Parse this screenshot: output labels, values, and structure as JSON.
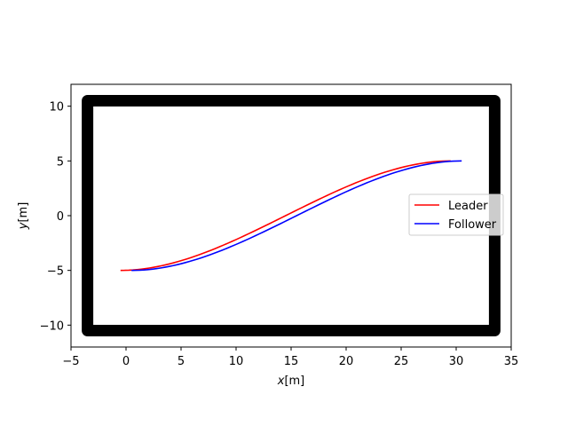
{
  "chart_data": {
    "type": "line",
    "title": "",
    "xlabel_italic": "x",
    "xlabel_unit": "[m]",
    "ylabel_italic": "y",
    "ylabel_unit": "[m]",
    "xlim": [
      -5,
      35
    ],
    "ylim": [
      -12,
      12
    ],
    "xticks": [
      -5,
      0,
      5,
      10,
      15,
      20,
      25,
      30,
      35
    ],
    "yticks": [
      -10,
      -5,
      0,
      5,
      10
    ],
    "xtick_labels": [
      "−5",
      "0",
      "5",
      "10",
      "15",
      "20",
      "25",
      "30",
      "35"
    ],
    "ytick_labels": [
      "−10",
      "−5",
      "0",
      "5",
      "10"
    ],
    "grid": false,
    "legend_position": "center-right",
    "boundary": {
      "color": "#000000",
      "corners": [
        [
          -3.5,
          10.5
        ],
        [
          33.5,
          10.5
        ],
        [
          33.5,
          -10.5
        ],
        [
          -3.5,
          -10.5
        ]
      ]
    },
    "series": [
      {
        "name": "Leader",
        "color": "#ff0000",
        "x_start": -0.5,
        "x_end": 29.5,
        "y_start": -5,
        "y_end": 5,
        "shape": "smoothstep"
      },
      {
        "name": "Follower",
        "color": "#0000ff",
        "x_start": 0.5,
        "x_end": 30.5,
        "y_start": -5,
        "y_end": 5,
        "shape": "smoothstep"
      }
    ]
  }
}
